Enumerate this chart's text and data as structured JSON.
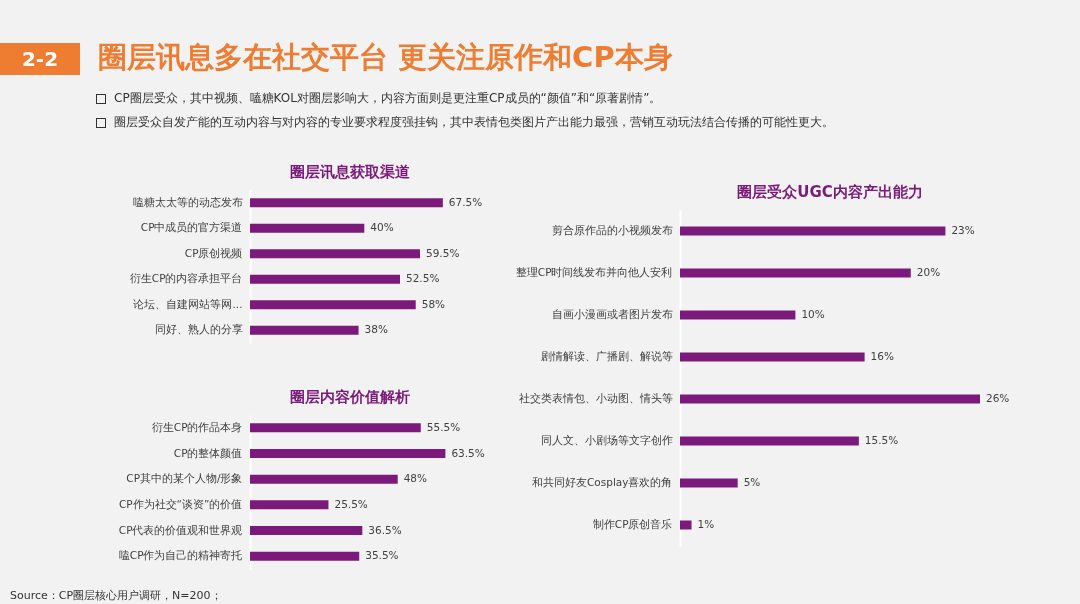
{
  "chart_data": [
    {
      "type": "other",
      "title": "圈层讯息多在社交平台 更关注原作和CP本身",
      "annotations": [
        "2-2",
        "CP圈层受众，其中视频、嗑糖KOL对圈层影响大，内容方面则是更注重CP成员的“颜值”和“原著剧情”。",
        "圈层受众自发产能的互动内容与对内容的专业要求程度强挂钩，其中表情包类图片产出能力最强，营销互动玩法结合传播的可能性更大。",
        "Source：CP圈层核心用户调研，N=200；"
      ]
    },
    {
      "type": "bar",
      "orientation": "horizontal",
      "title": "圈层讯息获取渠道",
      "categories": [
        "嗑糖太太等的动态发布",
        "CP中成员的官方渠道",
        "CP原创视频",
        "衍生CP的内容承担平台",
        "论坛、自建网站等网...",
        "同好、熟人的分享"
      ],
      "values": [
        67.5,
        40,
        59.5,
        52.5,
        58,
        38
      ],
      "value_labels": [
        "67.5%",
        "40%",
        "59.5%",
        "52.5%",
        "58%",
        "38%"
      ],
      "color": "#7b1a7a"
    },
    {
      "type": "bar",
      "orientation": "horizontal",
      "title": "圈层内容价值解析",
      "categories": [
        "衍生CP的作品本身",
        "CP的整体颜值",
        "CP其中的某个人物/形象",
        "CP作为社交“谈资”的价值",
        "CP代表的价值观和世界观",
        "嗑CP作为自己的精神寄托"
      ],
      "values": [
        55.5,
        63.5,
        48,
        25.5,
        36.5,
        35.5
      ],
      "value_labels": [
        "55.5%",
        "63.5%",
        "48%",
        "25.5%",
        "36.5%",
        "35.5%"
      ],
      "color": "#7b1a7a"
    },
    {
      "type": "bar",
      "orientation": "horizontal",
      "title": "圈层受众UGC内容产出能力",
      "categories": [
        "剪合原作品的小视频发布",
        "整理CP时间线发布并向他人安利",
        "自画小漫画或者图片发布",
        "剧情解读、广播剧、解说等",
        "社交类表情包、小动图、情头等",
        "同人文、小剧场等文字创作",
        "和共同好友Cosplay喜欢的角",
        "制作CP原创音乐"
      ],
      "values": [
        23,
        20,
        10,
        16,
        26,
        15.5,
        5,
        1
      ],
      "value_labels": [
        "23%",
        "20%",
        "10%",
        "16%",
        "26%",
        "15.5%",
        "5%",
        "1%"
      ],
      "color": "#7b1a7a"
    }
  ]
}
